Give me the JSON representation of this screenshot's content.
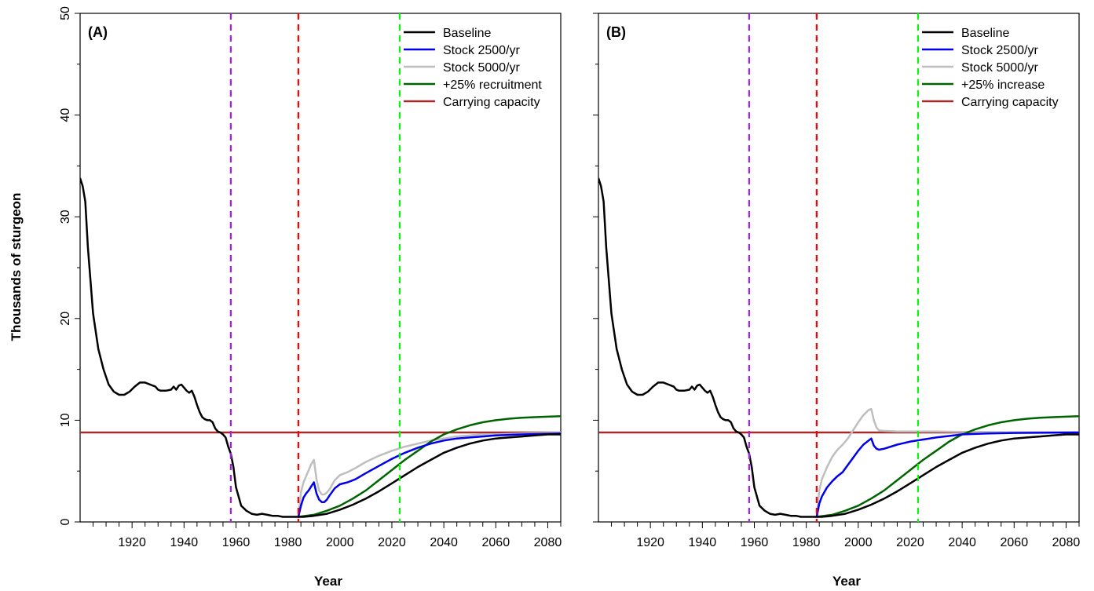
{
  "chart_data": {
    "type": "line",
    "ylabel": "Thousands of sturgeon",
    "xlabel": "Year",
    "xlim": [
      1900,
      2085
    ],
    "ylim": [
      0,
      50
    ],
    "x_tick_labels": [
      "1920",
      "1940",
      "1960",
      "1980",
      "2000",
      "2020",
      "2040",
      "2060",
      "2080"
    ],
    "x_ticks": [
      1920,
      1940,
      1960,
      1980,
      2000,
      2020,
      2040,
      2060,
      2080
    ],
    "y_tick_labels": [
      "0",
      "10",
      "20",
      "30",
      "40",
      "50"
    ],
    "y_ticks": [
      0,
      10,
      20,
      30,
      40,
      50
    ],
    "colors": {
      "baseline": "#000000",
      "stock2500": "#0000ee",
      "stock5000": "#bebebe",
      "increase": "#006400",
      "capacity": "#a52a2a",
      "vline_purple": "#a020f0",
      "vline_red": "#ff0000",
      "vline_green": "#00ff00"
    },
    "vertical_lines": [
      {
        "x": 1958,
        "color": "#a020f0"
      },
      {
        "x": 1984,
        "color": "#ff0000"
      },
      {
        "x": 2023,
        "color": "#00ff00"
      }
    ],
    "carrying_capacity": 8.8,
    "baseline": {
      "x": [
        1900,
        1901,
        1902,
        1903,
        1905,
        1907,
        1909,
        1911,
        1913,
        1915,
        1917,
        1919,
        1921,
        1923,
        1925,
        1927,
        1929,
        1930,
        1931,
        1933,
        1935,
        1936,
        1937,
        1938,
        1939,
        1940,
        1941,
        1942,
        1943,
        1944,
        1945,
        1946,
        1947,
        1948,
        1949,
        1950,
        1951,
        1952,
        1953,
        1954,
        1955,
        1956,
        1957,
        1958,
        1959,
        1960,
        1962,
        1964,
        1966,
        1968,
        1970,
        1972,
        1974,
        1976,
        1978,
        1980,
        1982,
        1984,
        1986,
        1990,
        1995,
        2000,
        2005,
        2010,
        2015,
        2020,
        2025,
        2030,
        2035,
        2040,
        2045,
        2050,
        2055,
        2060,
        2065,
        2070,
        2075,
        2080,
        2085
      ],
      "values": [
        33.8,
        33.0,
        31.5,
        27.0,
        20.5,
        17.0,
        15.0,
        13.5,
        12.8,
        12.5,
        12.5,
        12.8,
        13.3,
        13.7,
        13.7,
        13.5,
        13.3,
        13.0,
        12.9,
        12.9,
        13.0,
        13.3,
        13.0,
        13.4,
        13.5,
        13.2,
        12.9,
        12.7,
        12.9,
        12.3,
        11.5,
        10.8,
        10.3,
        10.1,
        10.0,
        10.0,
        9.8,
        9.2,
        8.9,
        8.8,
        8.6,
        8.3,
        7.4,
        6.7,
        5.4,
        3.4,
        1.6,
        1.1,
        0.8,
        0.7,
        0.8,
        0.7,
        0.6,
        0.6,
        0.5,
        0.5,
        0.5,
        0.5,
        0.5,
        0.6,
        0.8,
        1.2,
        1.7,
        2.3,
        3.0,
        3.8,
        4.6,
        5.4,
        6.1,
        6.8,
        7.3,
        7.7,
        8.0,
        8.2,
        8.3,
        8.4,
        8.5,
        8.6,
        8.6
      ]
    },
    "panels": [
      {
        "panel_label": "(A)",
        "legend": [
          "Baseline",
          "Stock 2500/yr",
          "Stock 5000/yr",
          "+25% recruitment",
          "Carrying capacity"
        ],
        "series": [
          {
            "name": "Stock 2500/yr",
            "x": [
              1984,
              1985,
              1986,
              1987,
              1988,
              1989,
              1990,
              1991,
              1992,
              1993,
              1994,
              1995,
              1996,
              1998,
              2000,
              2003,
              2006,
              2010,
              2015,
              2020,
              2025,
              2030,
              2035,
              2040,
              2045,
              2050,
              2055,
              2060,
              2070,
              2085
            ],
            "values": [
              0.5,
              1.6,
              2.4,
              2.8,
              3.1,
              3.5,
              3.9,
              2.8,
              2.2,
              1.95,
              1.95,
              2.2,
              2.6,
              3.3,
              3.7,
              3.9,
              4.2,
              4.8,
              5.5,
              6.2,
              6.8,
              7.3,
              7.7,
              8.0,
              8.2,
              8.3,
              8.4,
              8.5,
              8.6,
              8.7
            ]
          },
          {
            "name": "Stock 5000/yr",
            "x": [
              1984,
              1985,
              1986,
              1987,
              1988,
              1989,
              1990,
              1991,
              1992,
              1993,
              1994,
              1995,
              1996,
              1998,
              2000,
              2003,
              2006,
              2010,
              2015,
              2020,
              2025,
              2030,
              2035,
              2040,
              2045,
              2050,
              2055,
              2060,
              2070,
              2085
            ],
            "values": [
              0.5,
              2.9,
              3.9,
              4.5,
              5.1,
              5.7,
              6.1,
              4.2,
              3.1,
              2.7,
              2.7,
              2.9,
              3.2,
              4.1,
              4.6,
              4.9,
              5.3,
              5.9,
              6.5,
              7.0,
              7.4,
              7.7,
              8.0,
              8.2,
              8.4,
              8.5,
              8.6,
              8.6,
              8.7,
              8.8
            ]
          },
          {
            "name": "+25% recruitment",
            "x": [
              1984,
              1990,
              1995,
              2000,
              2005,
              2010,
              2015,
              2020,
              2025,
              2030,
              2035,
              2040,
              2045,
              2050,
              2055,
              2060,
              2065,
              2070,
              2075,
              2080,
              2085
            ],
            "values": [
              0.5,
              0.7,
              1.1,
              1.6,
              2.3,
              3.1,
              4.1,
              5.1,
              6.1,
              7.0,
              7.9,
              8.6,
              9.1,
              9.5,
              9.8,
              10.0,
              10.15,
              10.25,
              10.3,
              10.35,
              10.4
            ]
          }
        ]
      },
      {
        "panel_label": "(B)",
        "legend": [
          "Baseline",
          "Stock 2500/yr",
          "Stock 5000/yr",
          "+25% increase",
          "Carrying capacity"
        ],
        "series": [
          {
            "name": "Stock 2500/yr",
            "x": [
              1984,
              1985,
              1986,
              1988,
              1990,
              1992,
              1994,
              1996,
              1998,
              2000,
              2002,
              2004,
              2005,
              2006,
              2007,
              2008,
              2010,
              2015,
              2020,
              2025,
              2030,
              2040,
              2050,
              2060,
              2085
            ],
            "values": [
              0.5,
              1.8,
              2.5,
              3.4,
              4.0,
              4.5,
              4.9,
              5.6,
              6.3,
              7.0,
              7.6,
              8.0,
              8.2,
              7.5,
              7.2,
              7.1,
              7.2,
              7.6,
              7.9,
              8.1,
              8.3,
              8.6,
              8.7,
              8.75,
              8.8
            ]
          },
          {
            "name": "Stock 5000/yr",
            "x": [
              1984,
              1985,
              1986,
              1988,
              1990,
              1992,
              1994,
              1996,
              1998,
              2000,
              2002,
              2004,
              2005,
              2006,
              2007,
              2008,
              2010,
              2015,
              2020,
              2030,
              2040,
              2050,
              2060,
              2085
            ],
            "values": [
              0.5,
              3.1,
              4.2,
              5.4,
              6.4,
              7.1,
              7.6,
              8.2,
              9.0,
              9.8,
              10.5,
              11.0,
              11.1,
              10.0,
              9.3,
              9.0,
              8.95,
              8.9,
              8.9,
              8.9,
              8.85,
              8.85,
              8.8,
              8.8
            ]
          },
          {
            "name": "+25% increase",
            "x": [
              1984,
              1990,
              1995,
              2000,
              2005,
              2010,
              2015,
              2020,
              2025,
              2030,
              2035,
              2040,
              2045,
              2050,
              2055,
              2060,
              2065,
              2070,
              2075,
              2080,
              2085
            ],
            "values": [
              0.5,
              0.7,
              1.1,
              1.6,
              2.3,
              3.1,
              4.1,
              5.1,
              6.1,
              7.0,
              7.9,
              8.6,
              9.1,
              9.5,
              9.8,
              10.0,
              10.15,
              10.25,
              10.3,
              10.35,
              10.4
            ]
          }
        ]
      }
    ]
  }
}
